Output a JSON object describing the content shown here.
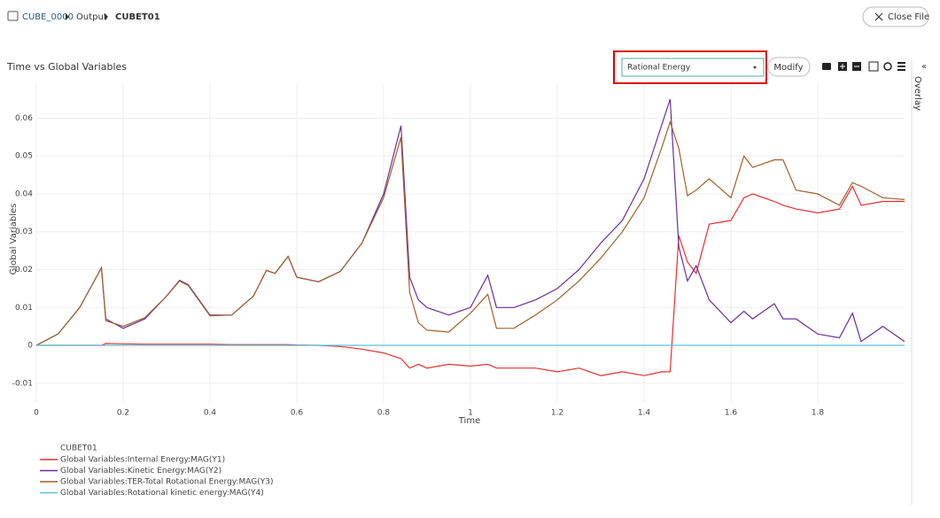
{
  "breadcrumb": [
    "CUBE_0000",
    "Output",
    "CUBET01"
  ],
  "close_button": "Close File",
  "toolbar": {
    "dropdown_value": "Rational Energy",
    "modify_button": "Modify",
    "overlay_tab": "Overlay"
  },
  "chart_data": {
    "type": "line",
    "title": "Time vs Global Variables",
    "xlabel": "Time",
    "ylabel": "Global Variables",
    "legend_title": "CUBET01",
    "x": [
      0,
      0.05,
      0.1,
      0.15,
      0.16,
      0.2,
      0.25,
      0.3,
      0.33,
      0.35,
      0.4,
      0.45,
      0.5,
      0.53,
      0.55,
      0.58,
      0.6,
      0.65,
      0.7,
      0.75,
      0.8,
      0.84,
      0.86,
      0.88,
      0.9,
      0.95,
      1.0,
      1.04,
      1.06,
      1.1,
      1.15,
      1.2,
      1.25,
      1.3,
      1.35,
      1.4,
      1.44,
      1.46,
      1.48,
      1.5,
      1.52,
      1.55,
      1.6,
      1.63,
      1.65,
      1.7,
      1.72,
      1.75,
      1.8,
      1.85,
      1.88,
      1.9,
      1.95,
      2.0
    ],
    "series": [
      {
        "name": "Global Variables:Internal Energy:MAG(Y1)",
        "color": "#e8302f",
        "values": [
          0,
          0,
          0,
          0,
          0.0005,
          0.0004,
          0.0003,
          0.0003,
          0.0003,
          0.0003,
          0.0003,
          0.0002,
          0.0002,
          0.0002,
          0.0002,
          0.0002,
          0.0001,
          0,
          -0.0003,
          -0.001,
          -0.002,
          -0.0035,
          -0.006,
          -0.005,
          -0.006,
          -0.005,
          -0.0055,
          -0.005,
          -0.006,
          -0.006,
          -0.006,
          -0.007,
          -0.006,
          -0.008,
          -0.007,
          -0.008,
          -0.007,
          -0.007,
          0.029,
          0.022,
          0.019,
          0.032,
          0.033,
          0.039,
          0.04,
          0.038,
          0.037,
          0.036,
          0.035,
          0.036,
          0.042,
          0.037,
          0.038,
          0.038
        ]
      },
      {
        "name": "Global Variables:Kinetic Energy:MAG(Y2)",
        "color": "#6a2d9c",
        "values": [
          0,
          0.003,
          0.01,
          0.0205,
          0.007,
          0.0045,
          0.007,
          0.013,
          0.0172,
          0.016,
          0.008,
          0.008,
          0.013,
          0.0198,
          0.019,
          0.0235,
          0.018,
          0.0168,
          0.0195,
          0.027,
          0.04,
          0.058,
          0.018,
          0.012,
          0.01,
          0.008,
          0.01,
          0.0185,
          0.01,
          0.01,
          0.012,
          0.015,
          0.02,
          0.027,
          0.033,
          0.044,
          0.058,
          0.065,
          0.026,
          0.017,
          0.021,
          0.012,
          0.006,
          0.009,
          0.007,
          0.011,
          0.007,
          0.007,
          0.003,
          0.002,
          0.0085,
          0.001,
          0.005,
          0.001
        ]
      },
      {
        "name": "Global Variables:TER-Total Rotational Energy:MAG(Y3)",
        "color": "#a0612a",
        "values": [
          0,
          0.003,
          0.01,
          0.0205,
          0.0065,
          0.005,
          0.0073,
          0.013,
          0.017,
          0.0158,
          0.0078,
          0.008,
          0.013,
          0.0198,
          0.019,
          0.0235,
          0.018,
          0.0168,
          0.0195,
          0.027,
          0.039,
          0.055,
          0.014,
          0.006,
          0.004,
          0.0035,
          0.0085,
          0.0135,
          0.0045,
          0.0045,
          0.008,
          0.012,
          0.017,
          0.023,
          0.03,
          0.039,
          0.052,
          0.059,
          0.052,
          0.0395,
          0.041,
          0.044,
          0.039,
          0.05,
          0.047,
          0.049,
          0.049,
          0.041,
          0.04,
          0.037,
          0.043,
          0.042,
          0.039,
          0.0385
        ]
      },
      {
        "name": "Global Variables:Rotational kinetic energy:MAG(Y4)",
        "color": "#5bc0de",
        "values": [
          0,
          0,
          0,
          0,
          0,
          0,
          0,
          0,
          0,
          0,
          0,
          0,
          0,
          0,
          0,
          0,
          0,
          0,
          0,
          0,
          0,
          0,
          0,
          0,
          0,
          0,
          0,
          0,
          0,
          0,
          0,
          0,
          0,
          0,
          0,
          0,
          0,
          0,
          0,
          0,
          0,
          0,
          0,
          0,
          0,
          0,
          0,
          0,
          0,
          0,
          0,
          0,
          0,
          0
        ]
      }
    ],
    "xlim": [
      0,
      2.0
    ],
    "ylim": [
      -0.0152,
      0.069
    ],
    "xticks": [
      0,
      0.2,
      0.4,
      0.6,
      0.8,
      1,
      1.2,
      1.4,
      1.6,
      1.8
    ],
    "yticks": [
      -0.01,
      0,
      0.01,
      0.02,
      0.03,
      0.04,
      0.05,
      0.06
    ],
    "grid": true
  }
}
